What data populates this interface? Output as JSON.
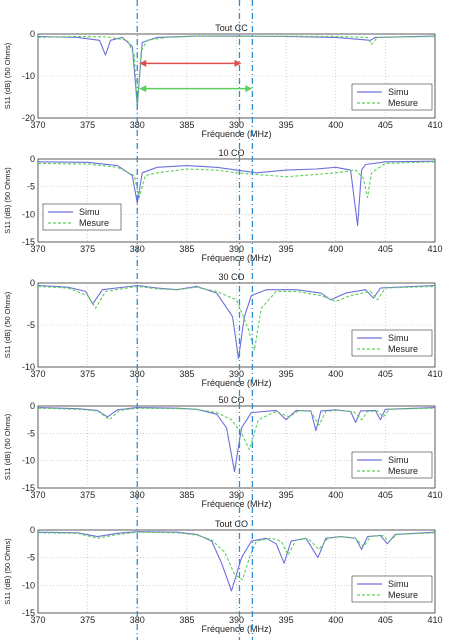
{
  "figure": {
    "xlabel": "Fréquence (MHz)",
    "ylabel": "S11 (dB) (50 Ohms)",
    "colors": {
      "simu": "#6f6fdc",
      "mesure": "#5ccf5c",
      "grid": "#b8b8b8",
      "vline_blue": "#2a8fd6",
      "arrow_red": "#e05050",
      "arrow_green": "#5ccf5c"
    },
    "vertical_markers_mhz": [
      380,
      390.3,
      391.6
    ],
    "arrows": [
      {
        "color": "red",
        "x_start": 380.2,
        "x_end": 390.5,
        "y_db": -7
      },
      {
        "color": "green",
        "x_start": 380.2,
        "x_end": 391.6,
        "y_db": -13
      }
    ]
  },
  "chart_data": [
    {
      "type": "line",
      "title": "Tout CC",
      "xlabel": "Fréquence (MHz)",
      "ylabel": "S11 (dB) (50 Ohms)",
      "xlim": [
        370,
        410
      ],
      "ylim": [
        -20,
        0
      ],
      "xticks": [
        370,
        375,
        380,
        385,
        390,
        395,
        400,
        405,
        410
      ],
      "yticks": [
        0,
        -10,
        -20
      ],
      "grid": true,
      "legend": "bottom-right",
      "series": [
        {
          "name": "Simu",
          "color": "#6f6fdc",
          "dash": "",
          "x": [
            370,
            374,
            376.2,
            376.8,
            377.3,
            378.5,
            379.5,
            380,
            380.5,
            382,
            386,
            390,
            395,
            400,
            403.5,
            404,
            410
          ],
          "y": [
            -0.6,
            -0.8,
            -1.5,
            -5,
            -1.5,
            -0.8,
            -3,
            -17,
            -2,
            -0.8,
            -0.5,
            -0.5,
            -0.6,
            -0.8,
            -1.5,
            -0.8,
            -0.5
          ]
        },
        {
          "name": "Mesure",
          "color": "#5ccf5c",
          "dash": "3,2",
          "x": [
            370,
            374,
            377,
            379,
            379.7,
            380,
            380.4,
            381,
            383,
            386,
            390,
            395,
            400,
            403.2,
            403.6,
            404.2,
            410
          ],
          "y": [
            -0.8,
            -0.6,
            -0.7,
            -1.5,
            -5,
            -18,
            -4,
            -1.5,
            -0.8,
            -0.5,
            -0.6,
            -0.5,
            -0.6,
            -0.8,
            -2.5,
            -0.8,
            -0.6
          ]
        }
      ]
    },
    {
      "type": "line",
      "title": "10 CO",
      "xlabel": "Fréquence (MHz)",
      "ylabel": "S11 (dB) (50 Ohms)",
      "xlim": [
        370,
        410
      ],
      "ylim": [
        -15,
        0
      ],
      "xticks": [
        370,
        375,
        380,
        385,
        390,
        395,
        400,
        405,
        410
      ],
      "yticks": [
        0,
        -5,
        -10,
        -15
      ],
      "grid": true,
      "legend": "bottom-left",
      "series": [
        {
          "name": "Simu",
          "color": "#6f6fdc",
          "dash": "",
          "x": [
            370,
            375,
            378,
            379.5,
            380,
            380.5,
            382,
            385,
            388,
            390,
            392,
            395,
            398,
            400,
            401.5,
            402.2,
            402.6,
            403,
            405,
            410
          ],
          "y": [
            -0.5,
            -0.6,
            -1.2,
            -3,
            -8,
            -2.5,
            -1.5,
            -1.2,
            -1.5,
            -2,
            -2.5,
            -2,
            -1.8,
            -1.5,
            -2,
            -12,
            -2,
            -1,
            -0.5,
            -0.4
          ]
        },
        {
          "name": "Mesure",
          "color": "#5ccf5c",
          "dash": "3,2",
          "x": [
            370,
            375,
            378,
            379.7,
            380.2,
            380.8,
            382,
            385,
            388,
            390,
            392,
            395,
            398,
            400,
            402,
            402.8,
            403.2,
            403.6,
            405,
            410
          ],
          "y": [
            -0.8,
            -0.9,
            -1.5,
            -3,
            -7,
            -3,
            -2.5,
            -1.8,
            -2,
            -2.5,
            -2.8,
            -3.2,
            -2.8,
            -2.5,
            -2,
            -3.5,
            -7,
            -2.5,
            -0.8,
            -0.5
          ]
        }
      ]
    },
    {
      "type": "line",
      "title": "30 CO",
      "xlabel": "Fréquence (MHz)",
      "ylabel": "S11 (dB) (50 Ohms)",
      "xlim": [
        370,
        410
      ],
      "ylim": [
        -10,
        0
      ],
      "xticks": [
        370,
        375,
        380,
        385,
        390,
        395,
        400,
        405,
        410
      ],
      "yticks": [
        0,
        -5,
        -10
      ],
      "grid": true,
      "legend": "bottom-right",
      "series": [
        {
          "name": "Simu",
          "color": "#6f6fdc",
          "dash": "",
          "x": [
            370,
            373,
            374.8,
            375.5,
            376.5,
            380,
            382,
            384,
            386,
            388,
            389.6,
            390.2,
            390.8,
            391.5,
            393,
            396,
            398.5,
            399.5,
            401,
            403,
            403.8,
            404.5,
            410
          ],
          "y": [
            -0.3,
            -0.5,
            -1,
            -2.5,
            -0.8,
            -0.3,
            -0.6,
            -0.8,
            -0.4,
            -1.2,
            -4,
            -9,
            -4,
            -1.5,
            -0.8,
            -0.8,
            -1.2,
            -2,
            -1.2,
            -0.8,
            -1.8,
            -0.6,
            -0.3
          ]
        },
        {
          "name": "Mesure",
          "color": "#5ccf5c",
          "dash": "3,2",
          "x": [
            370,
            373,
            375,
            375.8,
            376.8,
            380,
            382,
            384,
            386,
            388,
            390,
            391.2,
            391.8,
            392.5,
            394,
            396,
            398.5,
            400,
            401.5,
            403.5,
            404.2,
            405,
            410
          ],
          "y": [
            -0.4,
            -0.6,
            -1.5,
            -3,
            -1,
            -0.4,
            -0.7,
            -0.8,
            -0.5,
            -1,
            -2,
            -5.5,
            -8,
            -3,
            -1,
            -1,
            -1.5,
            -2.2,
            -1.5,
            -1,
            -2,
            -0.6,
            -0.4
          ]
        }
      ]
    },
    {
      "type": "line",
      "title": "50 CO",
      "xlabel": "Fréquence (MHz)",
      "ylabel": "S11 (dB) (50 Ohms)",
      "xlim": [
        370,
        410
      ],
      "ylim": [
        -15,
        0
      ],
      "xticks": [
        370,
        375,
        380,
        385,
        390,
        395,
        400,
        405,
        410
      ],
      "yticks": [
        0,
        -5,
        -10,
        -15
      ],
      "grid": true,
      "legend": "bottom-right",
      "series": [
        {
          "name": "Simu",
          "color": "#6f6fdc",
          "dash": "",
          "x": [
            370,
            374,
            376,
            377,
            378,
            380,
            384,
            386,
            388,
            389,
            389.8,
            390.5,
            391.5,
            394,
            395,
            396,
            397.5,
            398,
            398.5,
            400,
            401.5,
            402,
            402.5,
            404,
            404.5,
            405,
            410
          ],
          "y": [
            -0.3,
            -0.5,
            -0.8,
            -2,
            -0.7,
            -0.3,
            -0.4,
            -0.6,
            -1.5,
            -4,
            -12,
            -4,
            -1.2,
            -0.8,
            -2.5,
            -0.8,
            -0.9,
            -4.5,
            -0.9,
            -0.7,
            -1,
            -3,
            -0.9,
            -0.8,
            -2.5,
            -0.6,
            -0.3
          ]
        },
        {
          "name": "Mesure",
          "color": "#5ccf5c",
          "dash": "3,2",
          "x": [
            370,
            374,
            376,
            377.2,
            378.2,
            380,
            384,
            386,
            388,
            389.5,
            390.5,
            391.3,
            392.2,
            394,
            395.3,
            396.3,
            397.5,
            398.3,
            399,
            400,
            401.8,
            402.6,
            403.2,
            404.2,
            404.8,
            405.4,
            410
          ],
          "y": [
            -0.4,
            -0.6,
            -0.9,
            -2.5,
            -0.8,
            -0.4,
            -0.5,
            -0.6,
            -1.2,
            -2.5,
            -5,
            -8,
            -2.5,
            -1,
            -2,
            -0.8,
            -1,
            -3.5,
            -1,
            -0.8,
            -1,
            -2.5,
            -1,
            -0.9,
            -2,
            -0.6,
            -0.4
          ]
        }
      ]
    },
    {
      "type": "line",
      "title": "Tout CO",
      "xlabel": "Fréquence (MHz)",
      "ylabel": "S11 (dB) (50 Ohms)",
      "xlim": [
        370,
        410
      ],
      "ylim": [
        -15,
        0
      ],
      "xticks": [
        370,
        375,
        380,
        385,
        390,
        395,
        400,
        405,
        410
      ],
      "yticks": [
        0,
        -5,
        -10,
        -15
      ],
      "grid": true,
      "legend": "bottom-right",
      "series": [
        {
          "name": "Simu",
          "color": "#6f6fdc",
          "dash": "",
          "x": [
            370,
            374,
            376,
            378,
            380,
            384,
            386,
            387.5,
            388.5,
            389.5,
            390.5,
            391.5,
            393,
            394,
            394.8,
            395.5,
            397,
            398.2,
            399,
            400.5,
            402,
            402.6,
            403.2,
            404.5,
            405.2,
            406,
            410
          ],
          "y": [
            -0.4,
            -0.5,
            -1.2,
            -0.6,
            -0.3,
            -0.4,
            -0.8,
            -2,
            -6,
            -11,
            -5,
            -2,
            -1.5,
            -2.5,
            -6,
            -2,
            -1.5,
            -5,
            -1.5,
            -1.2,
            -1.5,
            -3.5,
            -1.2,
            -1,
            -2.5,
            -0.8,
            -0.4
          ]
        },
        {
          "name": "Mesure",
          "color": "#5ccf5c",
          "dash": "3,2",
          "x": [
            370,
            374,
            376,
            378,
            380,
            384,
            386,
            387.5,
            388.8,
            389.8,
            390.6,
            391.3,
            392,
            393.5,
            394.5,
            395.2,
            396,
            397.2,
            398.3,
            399.2,
            400.5,
            402,
            402.8,
            403.5,
            404.7,
            405.4,
            406.2,
            410
          ],
          "y": [
            -0.5,
            -0.6,
            -1.5,
            -0.8,
            -0.4,
            -0.5,
            -0.9,
            -1.8,
            -4,
            -8,
            -9,
            -5,
            -2,
            -1.5,
            -2,
            -4.5,
            -1.8,
            -1.5,
            -3.5,
            -1.5,
            -1.2,
            -1.5,
            -3,
            -1.2,
            -1,
            -2,
            -0.8,
            -0.5
          ]
        }
      ]
    }
  ]
}
